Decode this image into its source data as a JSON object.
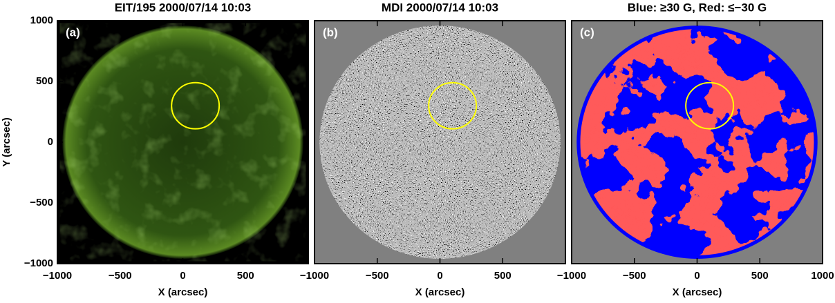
{
  "chart_data": [
    {
      "type": "image",
      "title": "EIT/195 2000/07/14 10:03",
      "panel_label": "(a)",
      "xlabel": "X (arcsec)",
      "ylabel": "Y (arcsec)",
      "xlim": [
        -1000,
        1000
      ],
      "ylim": [
        -1000,
        1000
      ],
      "xticks": [
        {
          "value": -1000,
          "label": "−1000"
        },
        {
          "value": -500,
          "label": "−500"
        },
        0,
        500
      ],
      "yticks": [
        {
          "value": -1000,
          "label": "−1000"
        },
        {
          "value": -500,
          "label": "−500"
        },
        0,
        500,
        1000
      ],
      "circle": {
        "x": 100,
        "y": 300,
        "r": 190
      }
    },
    {
      "type": "image",
      "title": "MDI 2000/07/14 10:03",
      "panel_label": "(b)",
      "xlabel": "X (arcsec)",
      "xlim": [
        -1000,
        1000
      ],
      "ylim": [
        -1000,
        1000
      ],
      "xticks": [
        {
          "value": -1000,
          "label": "−1000"
        },
        {
          "value": -500,
          "label": "−500"
        },
        0,
        500
      ],
      "circle": {
        "x": 100,
        "y": 300,
        "r": 190
      }
    },
    {
      "type": "image",
      "title": "Blue: ≥30 G, Red: ≤−30 G",
      "panel_label": "(c)",
      "xlabel": "X (arcsec)",
      "xlim": [
        -1000,
        1000
      ],
      "ylim": [
        -1000,
        1000
      ],
      "xticks": [
        {
          "value": -1000,
          "label": "−1000"
        },
        {
          "value": -500,
          "label": "−500"
        },
        0,
        500,
        1000
      ],
      "circle": {
        "x": 100,
        "y": 300,
        "r": 190
      }
    }
  ]
}
